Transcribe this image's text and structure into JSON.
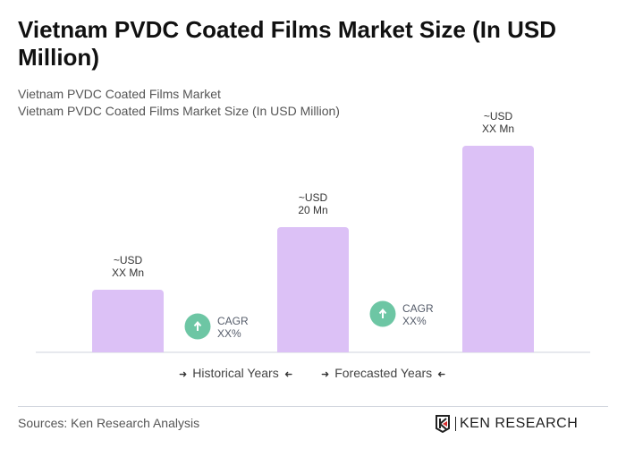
{
  "title": "Vietnam PVDC Coated Films Market Size (In USD Million)",
  "subtitle1": "Vietnam PVDC Coated Films Market",
  "subtitle2": "Vietnam PVDC Coated Films Market Size (In USD Million)",
  "chart_data": {
    "type": "bar",
    "categories": [
      "",
      "",
      ""
    ],
    "values": [
      10,
      20,
      33
    ],
    "data_labels": [
      [
        "~USD",
        "XX Mn"
      ],
      [
        "~USD",
        "20 Mn"
      ],
      [
        "~USD",
        "XX Mn"
      ]
    ],
    "bar_color": "#dcc1f6",
    "grid": false,
    "cagr": [
      {
        "label": "CAGR",
        "value": "XX%"
      },
      {
        "label": "CAGR",
        "value": "XX%"
      }
    ],
    "cagr_color": "#6dc6a4"
  },
  "legend": {
    "historical": "Historical Years",
    "forecasted": "Forecasted Years",
    "arrow_right": "➜",
    "arrow_left": "➜"
  },
  "source": "Sources: Ken Research Analysis",
  "logo": "KEN RESEARCH"
}
